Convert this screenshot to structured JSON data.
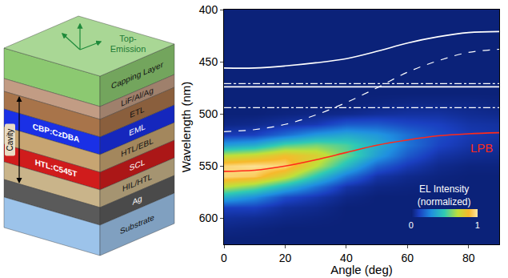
{
  "diagram": {
    "top_label": "Top-Emission",
    "layers": [
      {
        "label": "Capping Layer",
        "color": "#8cc971"
      },
      {
        "label": "LiF/Al/Ag",
        "color": "#c29c84"
      },
      {
        "label": "ETL",
        "color": "#a8744a"
      },
      {
        "label": "EML",
        "color": "#1a30e6"
      },
      {
        "label": "HTL/EBL",
        "color": "#c7a572"
      },
      {
        "label": "SCL",
        "color": "#d01c1c"
      },
      {
        "label": "HIL/HTL",
        "color": "#c9b48a"
      },
      {
        "label": "Ag",
        "color": "#5a5a5a"
      },
      {
        "label": "Substrate",
        "color": "#9cc3ea"
      }
    ],
    "left_labels": [
      {
        "layer": "EML",
        "text": "CBP:CzDBA"
      },
      {
        "layer": "SCL",
        "text": "HTL:C545T"
      }
    ],
    "cavity": {
      "text": "Cavity",
      "from": "ETL",
      "to": "HIL/HTL"
    }
  },
  "chart_data": {
    "type": "heatmap",
    "x_label": "Angle (deg)",
    "y_label": "Wavelength (nm)",
    "xlim": [
      0,
      90
    ],
    "xticks": [
      0,
      20,
      40,
      60,
      80
    ],
    "ylim": [
      625,
      400
    ],
    "yticks": [
      400,
      450,
      500,
      550,
      600
    ],
    "grid": false,
    "x": [
      0,
      10,
      20,
      30,
      40,
      50,
      60,
      70,
      80,
      90
    ],
    "heatmap": {
      "y": [
        400,
        410,
        420,
        430,
        440,
        450,
        460,
        470,
        480,
        490,
        500,
        510,
        520,
        530,
        540,
        550,
        560,
        570,
        580,
        590,
        600,
        610,
        620
      ],
      "z": [
        [
          0.01,
          0.01,
          0.01,
          0.01,
          0.01,
          0.01,
          0.01,
          0.01,
          0.01,
          0.01
        ],
        [
          0.01,
          0.01,
          0.01,
          0.01,
          0.01,
          0.01,
          0.01,
          0.01,
          0.01,
          0.01
        ],
        [
          0.01,
          0.01,
          0.01,
          0.01,
          0.01,
          0.01,
          0.01,
          0.01,
          0.01,
          0.01
        ],
        [
          0.01,
          0.01,
          0.01,
          0.01,
          0.01,
          0.01,
          0.01,
          0.01,
          0.01,
          0.01
        ],
        [
          0.01,
          0.01,
          0.01,
          0.01,
          0.01,
          0.01,
          0.01,
          0.01,
          0.01,
          0.01
        ],
        [
          0.01,
          0.01,
          0.01,
          0.01,
          0.01,
          0.01,
          0.01,
          0.01,
          0.01,
          0.01
        ],
        [
          0.01,
          0.01,
          0.01,
          0.01,
          0.01,
          0.01,
          0.01,
          0.01,
          0.01,
          0.01
        ],
        [
          0.01,
          0.01,
          0.01,
          0.01,
          0.01,
          0.01,
          0.01,
          0.01,
          0.01,
          0.01
        ],
        [
          0.01,
          0.01,
          0.01,
          0.01,
          0.01,
          0.01,
          0.01,
          0.01,
          0.01,
          0.01
        ],
        [
          0.01,
          0.01,
          0.01,
          0.01,
          0.01,
          0.02,
          0.03,
          0.03,
          0.03,
          0.02
        ],
        [
          0.01,
          0.01,
          0.02,
          0.03,
          0.04,
          0.06,
          0.07,
          0.07,
          0.05,
          0.04
        ],
        [
          0.03,
          0.04,
          0.07,
          0.1,
          0.18,
          0.18,
          0.14,
          0.12,
          0.08,
          0.07
        ],
        [
          0.1,
          0.12,
          0.22,
          0.33,
          0.38,
          0.33,
          0.23,
          0.15,
          0.1,
          0.08
        ],
        [
          0.35,
          0.4,
          0.55,
          0.6,
          0.54,
          0.4,
          0.24,
          0.13,
          0.08,
          0.06
        ],
        [
          0.7,
          0.75,
          0.85,
          0.78,
          0.58,
          0.35,
          0.18,
          0.08,
          0.05,
          0.04
        ],
        [
          0.95,
          0.98,
          0.95,
          0.7,
          0.44,
          0.2,
          0.1,
          0.04,
          0.02,
          0.02
        ],
        [
          0.95,
          0.92,
          0.75,
          0.48,
          0.24,
          0.08,
          0.04,
          0.02,
          0.01,
          0.01
        ],
        [
          0.7,
          0.6,
          0.42,
          0.24,
          0.08,
          0.03,
          0.02,
          0.01,
          0.01,
          0.01
        ],
        [
          0.4,
          0.3,
          0.15,
          0.09,
          0.03,
          0.01,
          0.01,
          0.01,
          0.01,
          0.01
        ],
        [
          0.12,
          0.12,
          0.06,
          0.04,
          0.01,
          0.01,
          0.01,
          0.01,
          0.01,
          0.01
        ],
        [
          0.06,
          0.05,
          0.03,
          0.02,
          0.01,
          0.01,
          0.01,
          0.01,
          0.01,
          0.01
        ],
        [
          0.03,
          0.02,
          0.01,
          0.01,
          0.01,
          0.01,
          0.01,
          0.01,
          0.01,
          0.01
        ],
        [
          0.01,
          0.01,
          0.01,
          0.01,
          0.01,
          0.01,
          0.01,
          0.01,
          0.01,
          0.01
        ]
      ]
    },
    "colorbar": {
      "label": "EL Intensity (normalized)",
      "range": [
        0,
        1
      ],
      "ticks": [
        0,
        1
      ]
    },
    "series": [
      {
        "color": "#ffffff",
        "line_style": "solid",
        "values": [
          456,
          456,
          454,
          451,
          447,
          440,
          432,
          426,
          422,
          421
        ]
      },
      {
        "color": "#ffffff",
        "line_style": "solid",
        "values": [
          474,
          474,
          474,
          474,
          474,
          474,
          474,
          474,
          474,
          474
        ]
      },
      {
        "color": "#ffffff",
        "line_style": "dashed",
        "values": [
          517,
          515,
          510,
          501,
          489,
          475,
          460,
          449,
          441,
          438
        ]
      },
      {
        "color": "#ffffff",
        "line_style": "dashdot",
        "values": [
          471,
          471,
          471,
          471,
          471,
          471,
          471,
          471,
          471,
          471
        ]
      },
      {
        "color": "#ffffff",
        "line_style": "dashdot",
        "values": [
          494,
          494,
          494,
          494,
          494,
          494,
          494,
          494,
          494,
          494
        ]
      },
      {
        "name": "LPB",
        "color": "#ff2a1a",
        "line_style": "solid",
        "values": [
          555,
          554,
          550,
          544,
          537,
          530,
          525,
          521,
          519,
          518
        ]
      }
    ]
  }
}
